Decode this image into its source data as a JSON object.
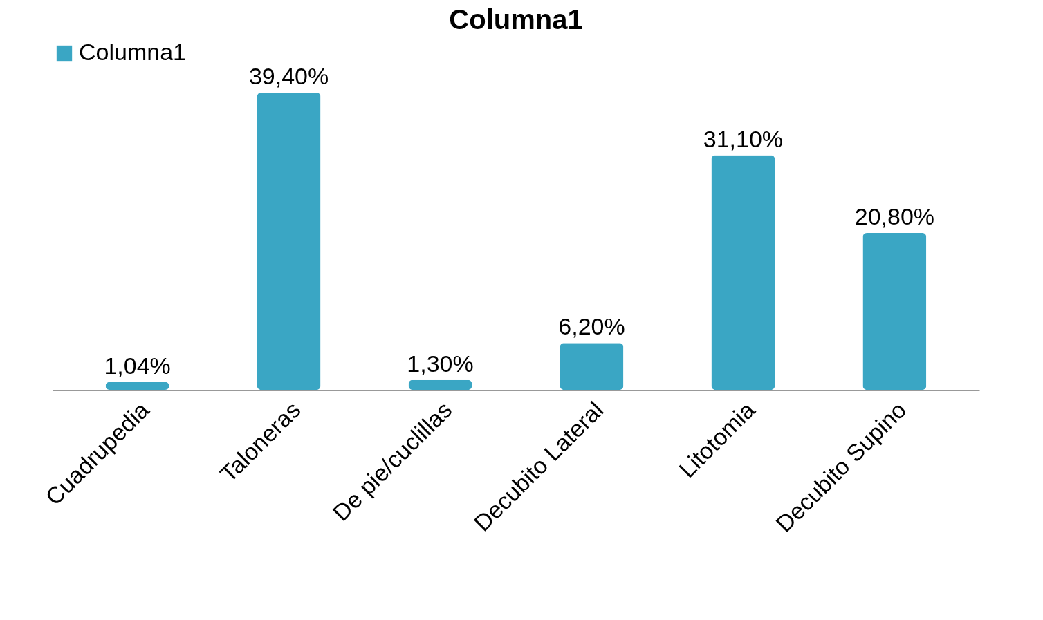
{
  "chart_data": {
    "type": "bar",
    "title": "Columna1",
    "categories": [
      "Cuadrupedia",
      "Taloneras",
      "De pie/cuclillas",
      "Decubito Lateral",
      "Litotomia",
      "Decubito Supino"
    ],
    "series": [
      {
        "name": "Columna1",
        "color": "#3aa6c4",
        "values": [
          1.04,
          39.4,
          1.3,
          6.2,
          31.1,
          20.8
        ],
        "value_labels": [
          "1,04%",
          "39,40%",
          "1,30%",
          "6,20%",
          "31,10%",
          "20,80%"
        ]
      }
    ],
    "legend": "top"
  }
}
